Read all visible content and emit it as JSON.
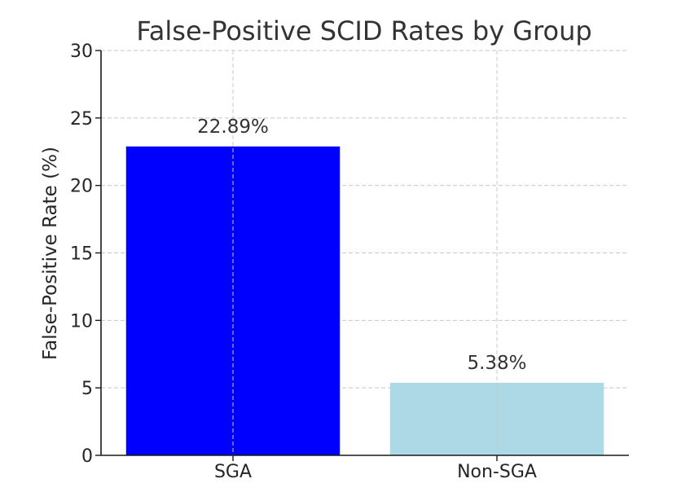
{
  "chart_data": {
    "type": "bar",
    "title": "False-Positive SCID Rates by Group",
    "xlabel": "",
    "ylabel": "False-Positive Rate (%)",
    "categories": [
      "SGA",
      "Non-SGA"
    ],
    "values": [
      22.89,
      5.38
    ],
    "data_labels": [
      "22.89%",
      "5.38%"
    ],
    "bar_colors": [
      "#0000ff",
      "#add8e6"
    ],
    "ylim": [
      0,
      30
    ],
    "yticks": [
      0,
      5,
      10,
      15,
      20,
      25,
      30
    ],
    "ytick_labels": [
      "0",
      "5",
      "10",
      "15",
      "20",
      "25",
      "30"
    ],
    "grid": true,
    "legend": "none"
  }
}
